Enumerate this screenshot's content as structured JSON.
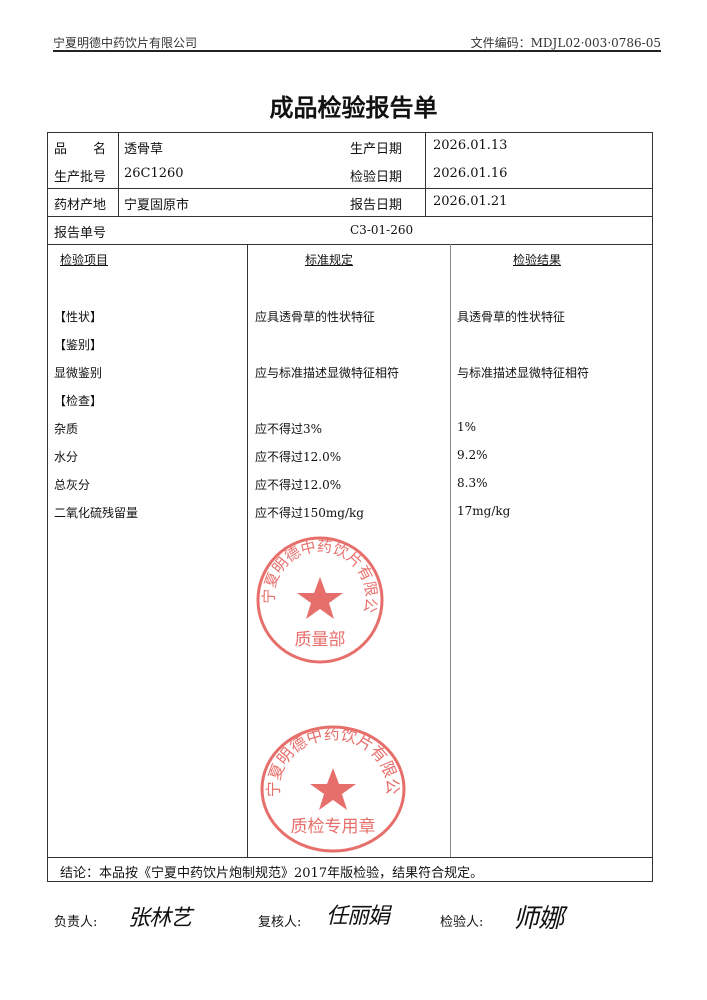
{
  "header": {
    "company": "宁夏明德中药饮片有限公司",
    "doc_no": "文件编码：MDJL02·003·0786-05"
  },
  "title": "成品检验报告单",
  "info": {
    "name_label": "品　　名",
    "name": "透骨草",
    "batch_label": "生产批号",
    "batch": "26C1260",
    "origin_label": "药材产地",
    "origin": "宁夏固原市",
    "prod_date_label": "生产日期",
    "prod_date": "2026.01.13",
    "test_date_label": "检验日期",
    "test_date": "2026.01.16",
    "report_date_label": "报告日期",
    "report_date": "2026.01.21",
    "report_no_label": "报告单号",
    "report_no": "C3-01-260"
  },
  "table": {
    "headers": [
      "检验项目",
      "标准规定",
      "检验结果"
    ],
    "rows": [
      {
        "item": "【性状】",
        "standard": "应具透骨草的性状特征",
        "result": "具透骨草的性状特征"
      },
      {
        "item": "【鉴别】",
        "standard": "",
        "result": ""
      },
      {
        "item": "显微鉴别",
        "standard": "应与标准描述显微特征相符",
        "result": "与标准描述显微特征相符"
      },
      {
        "item": "【检查】",
        "standard": "",
        "result": ""
      },
      {
        "item": "杂质",
        "standard": "应不得过3%",
        "result": "1%"
      },
      {
        "item": "水分",
        "standard": "应不得过12.0%",
        "result": "9.2%"
      },
      {
        "item": "总灰分",
        "standard": "应不得过12.0%",
        "result": "8.3%"
      },
      {
        "item": "二氧化硫残留量",
        "standard": "应不得过150mg/kg",
        "result": "17mg/kg"
      }
    ]
  },
  "conclusion": "结论：本品按《宁夏中药饮片炮制规范》2017年版检验，结果符合规定。",
  "signatures": {
    "responsible_label": "负责人:",
    "responsible": "张林艺",
    "reviewer_label": "复核人:",
    "reviewer": "任丽娟",
    "inspector_label": "检验人:",
    "inspector": "师娜"
  },
  "stamps": {
    "top": {
      "text": "宁夏明德中药饮片有限公司",
      "dept": "质量部",
      "color": "#e0403a"
    },
    "bottom": {
      "text": "宁夏明德中药饮片有限公司",
      "dept": "质检专用章",
      "color": "#e0403a"
    }
  }
}
